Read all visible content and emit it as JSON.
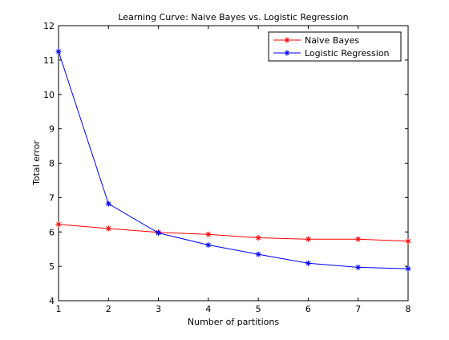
{
  "chart_data": {
    "type": "line",
    "title": "Learning Curve: Naive Bayes vs. Logistic Regression",
    "xlabel": "Number of partitions",
    "ylabel": "Total error",
    "xlim": [
      1,
      8
    ],
    "ylim": [
      4,
      12
    ],
    "xticks": [
      1,
      2,
      3,
      4,
      5,
      6,
      7,
      8
    ],
    "yticks": [
      4,
      5,
      6,
      7,
      8,
      9,
      10,
      11,
      12
    ],
    "grid": false,
    "legend_position": "top-right",
    "x": [
      1,
      2,
      3,
      4,
      5,
      6,
      7,
      8
    ],
    "series": [
      {
        "name": "Naive Bayes",
        "color": "#ff0000",
        "marker": "asterisk",
        "values": [
          6.22,
          6.1,
          5.99,
          5.93,
          5.83,
          5.79,
          5.79,
          5.73
        ]
      },
      {
        "name": "Logistic Regression",
        "color": "#0000ff",
        "marker": "asterisk",
        "values": [
          11.25,
          6.82,
          5.97,
          5.62,
          5.35,
          5.09,
          4.97,
          4.93
        ]
      }
    ]
  }
}
